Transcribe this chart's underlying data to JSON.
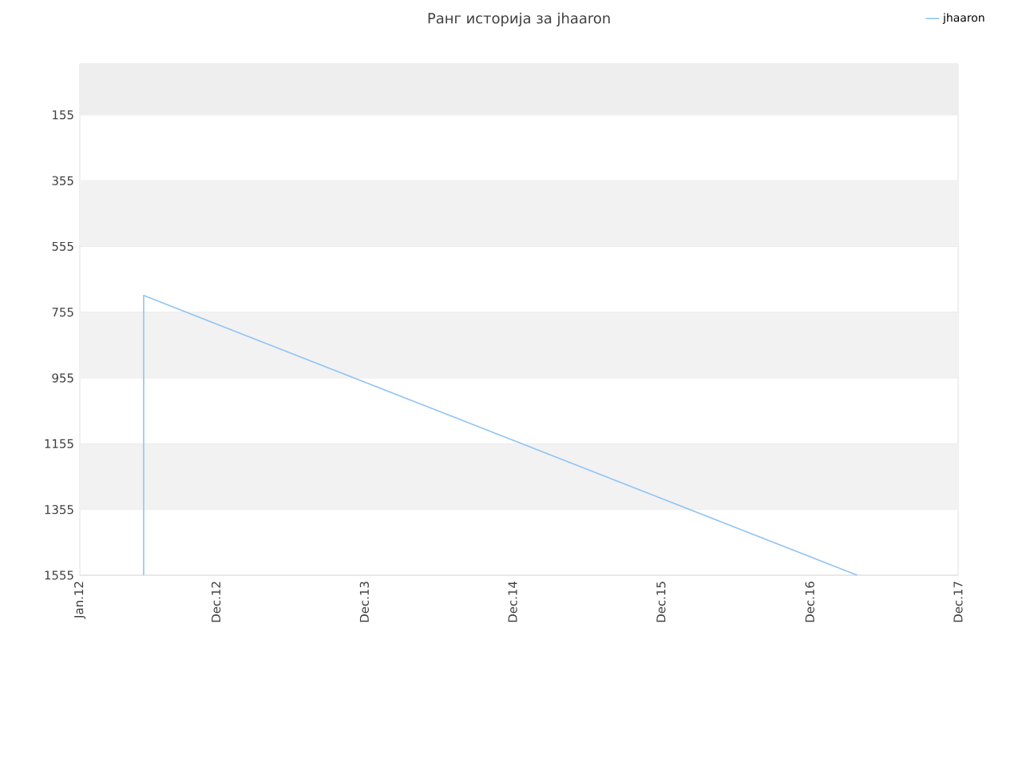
{
  "chart_data": {
    "type": "line",
    "title": "Ранг историја за jhaaron",
    "x": [
      "2012-06-06",
      "2012-06-06",
      "2017-03-28"
    ],
    "series": [
      {
        "name": "jhaaron",
        "color": "#90c4f4",
        "values": [
          1555,
          704,
          1555
        ]
      }
    ],
    "xlim": [
      "2012-01-01",
      "2017-12-01"
    ],
    "xticks": [
      {
        "value": "2012-01-01",
        "label": "Jan.12"
      },
      {
        "value": "2012-12-01",
        "label": "Dec.12"
      },
      {
        "value": "2013-12-01",
        "label": "Dec.13"
      },
      {
        "value": "2014-12-01",
        "label": "Dec.14"
      },
      {
        "value": "2015-12-01",
        "label": "Dec.15"
      },
      {
        "value": "2016-12-01",
        "label": "Dec.16"
      },
      {
        "value": "2017-12-01",
        "label": "Dec.17"
      }
    ],
    "ylim": [
      1555,
      0
    ],
    "yticks": [
      155,
      355,
      555,
      755,
      955,
      1155,
      1355,
      1555
    ],
    "bands": [
      {
        "axis": "y",
        "from": 0,
        "to": 155,
        "color": "#eeeeee"
      },
      {
        "axis": "y",
        "from": 355,
        "to": 555,
        "color": "#f2f2f2"
      },
      {
        "axis": "y",
        "from": 755,
        "to": 955,
        "color": "#f2f2f2"
      },
      {
        "axis": "y",
        "from": 1155,
        "to": 1355,
        "color": "#f2f2f2"
      }
    ],
    "grid": "y",
    "legend": "top right",
    "marker": "none",
    "line_style": "solid"
  }
}
